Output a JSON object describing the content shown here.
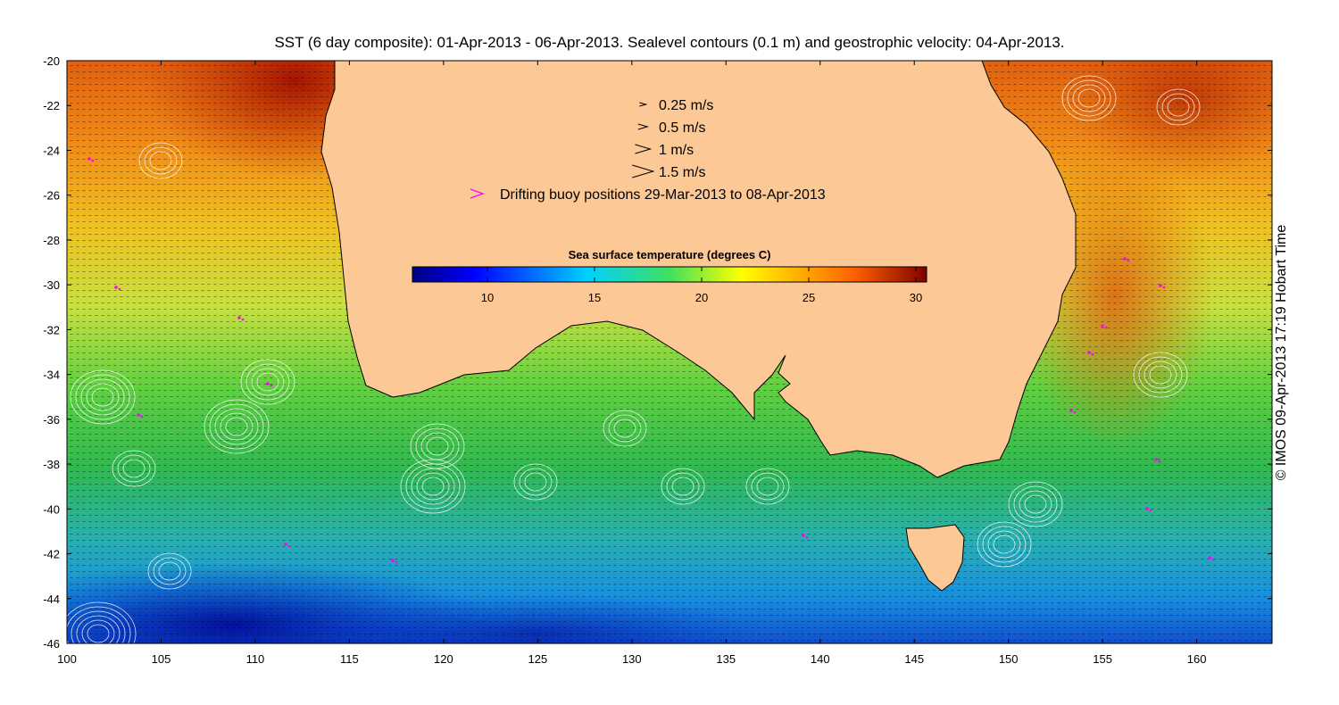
{
  "title": "SST (6 day composite): 01-Apr-2013 - 06-Apr-2013. Sealevel contours (0.1 m) and geostrophic velocity: 04-Apr-2013.",
  "credit": "© IMOS 09-Apr-2013 17:19 Hobart Time",
  "map": {
    "lon_range": [
      100,
      164
    ],
    "lat_range": [
      -46,
      -20
    ],
    "lon_ticks": [
      "100",
      "105",
      "110",
      "115",
      "120",
      "125",
      "130",
      "135",
      "140",
      "145",
      "150",
      "155",
      "160"
    ],
    "lat_ticks": [
      "-20",
      "-22",
      "-24",
      "-26",
      "-28",
      "-30",
      "-32",
      "-34",
      "-36",
      "-38",
      "-40",
      "-42",
      "-44",
      "-46"
    ],
    "land_color": "#fcc896",
    "contour_color": "#ffffff",
    "vector_color": "#000000",
    "buoy_color": "#ff00ff",
    "grid": false
  },
  "legend": {
    "speeds": [
      {
        "label": "0.25 m/s",
        "speed": 0.25
      },
      {
        "label": "0.5 m/s",
        "speed": 0.5
      },
      {
        "label": "1 m/s",
        "speed": 1
      },
      {
        "label": "1.5 m/s",
        "speed": 1.5
      }
    ],
    "buoy_label": "Drifting buoy positions 29-Mar-2013 to 08-Apr-2013"
  },
  "colorbar": {
    "title": "Sea surface temperature (degrees C)",
    "range": [
      6.5,
      30.5
    ],
    "ticks": [
      "10",
      "15",
      "20",
      "25",
      "30"
    ],
    "colormap": "jet"
  }
}
